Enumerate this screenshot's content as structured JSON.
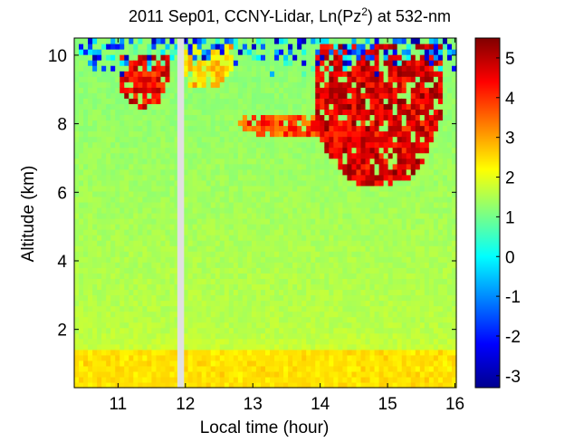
{
  "chart_data": {
    "type": "heatmap",
    "title_parts": [
      "2011 Sep01, CCNY-Lidar, Ln(Pz",
      "2",
      ") at 532-nm"
    ],
    "xlabel": "Local time (hour)",
    "ylabel": "Altitude (km)",
    "xlim": [
      10.35,
      16.02
    ],
    "ylim": [
      0.3,
      10.5
    ],
    "xticks": [
      11,
      12,
      13,
      14,
      15,
      16
    ],
    "xtick_labels": [
      "11",
      "12",
      "13",
      "14",
      "15",
      "16"
    ],
    "yticks": [
      2,
      4,
      6,
      8,
      10
    ],
    "ytick_labels": [
      "2",
      "4",
      "6",
      "8",
      "10"
    ],
    "colorbar": {
      "range": [
        -3.3,
        5.5
      ],
      "ticks": [
        -3,
        -2,
        -1,
        0,
        1,
        2,
        3,
        4,
        5
      ],
      "tick_labels": [
        "-3",
        "-2",
        "-1",
        "0",
        "1",
        "2",
        "3",
        "4",
        "5"
      ],
      "colormap": "jet"
    },
    "data_gap": {
      "x_start": 11.88,
      "x_end": 11.98
    },
    "background_value": 1.7,
    "low_layer": {
      "top_km": 1.4,
      "value": 2.3
    },
    "cloud_layers": [
      {
        "x_start": 11.0,
        "x_end": 11.75,
        "alt_top": 10.0,
        "alt_base": 8.5,
        "value": 5.2
      },
      {
        "x_start": 11.9,
        "x_end": 12.7,
        "alt_top": 10.4,
        "alt_base": 9.0,
        "value": 3.2
      },
      {
        "x_start": 12.8,
        "x_end": 14.2,
        "alt_top": 8.3,
        "alt_base": 7.6,
        "value": 4.6
      },
      {
        "x_start": 13.9,
        "x_end": 15.8,
        "alt_top": 10.3,
        "alt_base": 6.2,
        "value": 5.4
      }
    ],
    "noise_region": {
      "alt_min": 9.4,
      "alt_max": 10.5,
      "value_range": [
        -3,
        1
      ]
    }
  }
}
